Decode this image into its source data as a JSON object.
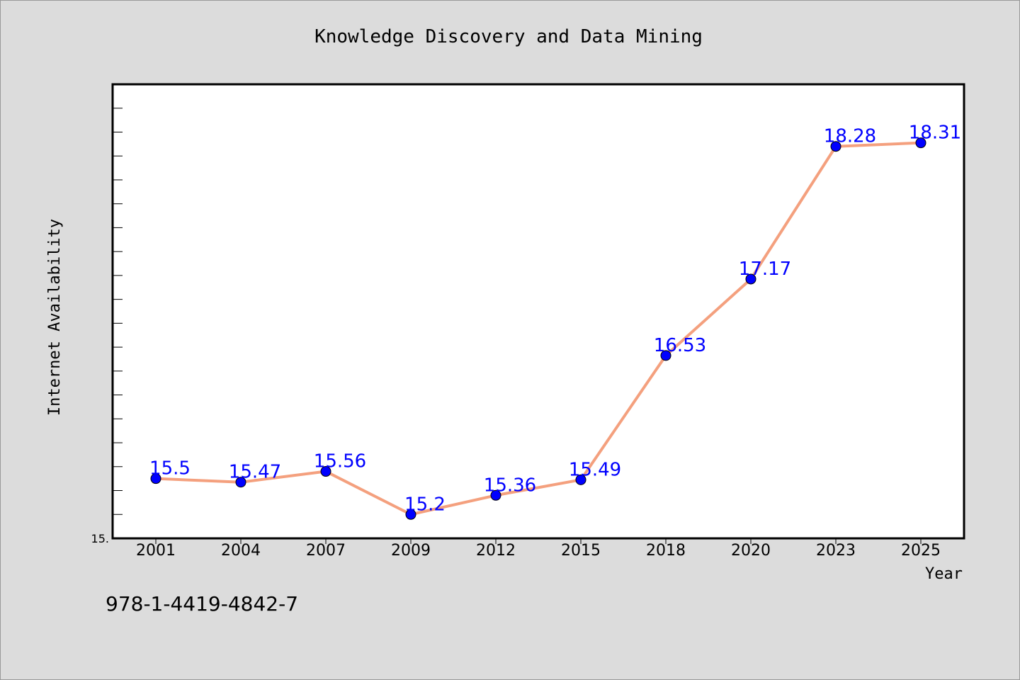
{
  "chart_data": {
    "type": "line",
    "title": "Knowledge Discovery and Data Mining",
    "xlabel": "Year",
    "ylabel": "Internet Availability",
    "categories": [
      "2001",
      "2004",
      "2007",
      "2009",
      "2012",
      "2015",
      "2018",
      "2020",
      "2023",
      "2025"
    ],
    "series": [
      {
        "values": [
          15.5,
          15.47,
          15.56,
          15.2,
          15.36,
          15.49,
          16.53,
          17.17,
          18.28,
          18.31
        ],
        "labels": [
          "15.5",
          "15.47",
          "15.56",
          "15.2",
          "15.36",
          "15.49",
          "16.53",
          "17.17",
          "18.28",
          "18.31"
        ]
      }
    ],
    "ylim": [
      15.0,
      18.8
    ],
    "y_tick_labels": [
      "15."
    ],
    "grid": false,
    "line_color": "#f4a07e",
    "marker_color": "#0000ff",
    "label_color": "#0000ff"
  },
  "footnote": "978-1-4419-4842-7"
}
